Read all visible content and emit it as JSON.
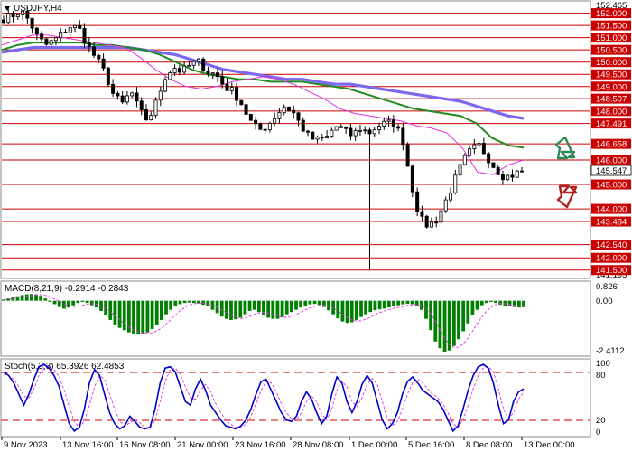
{
  "header": {
    "symbol": "USDJPY,H4"
  },
  "chart_data": [
    {
      "type": "candlestick",
      "panel": "price",
      "title": "USDJPY,H4",
      "ylim": [
        141.195,
        152.465
      ],
      "ytick_top": "152.465",
      "ytick_bottom": "141.195",
      "current_price": "145.547",
      "levels": [
        {
          "label": "152.000",
          "value": 152.0
        },
        {
          "label": "151.500",
          "value": 151.5
        },
        {
          "label": "151.000",
          "value": 151.0
        },
        {
          "label": "150.500",
          "value": 150.5
        },
        {
          "label": "150.000",
          "value": 150.0
        },
        {
          "label": "149.500",
          "value": 149.5
        },
        {
          "label": "149.000",
          "value": 149.0
        },
        {
          "label": "148.507",
          "value": 148.507
        },
        {
          "label": "148.000",
          "value": 148.0
        },
        {
          "label": "147.491",
          "value": 147.491
        },
        {
          "label": "146.658",
          "value": 146.658
        },
        {
          "label": "146.000",
          "value": 146.0
        },
        {
          "label": "145.000",
          "value": 145.0
        },
        {
          "label": "144.000",
          "value": 144.0
        },
        {
          "label": "143.484",
          "value": 143.484
        },
        {
          "label": "142.540",
          "value": 142.54
        },
        {
          "label": "142.000",
          "value": 142.0
        },
        {
          "label": "141.500",
          "value": 141.5
        }
      ],
      "close_path": [
        151.8,
        151.9,
        152.1,
        151.7,
        151.0,
        150.7,
        150.9,
        151.2,
        151.5,
        151.3,
        150.6,
        150.1,
        149.5,
        148.6,
        148.3,
        148.8,
        148.0,
        147.6,
        148.4,
        149.4,
        149.8,
        149.6,
        149.9,
        150.0,
        149.6,
        149.5,
        149.0,
        148.8,
        148.3,
        147.6,
        147.2,
        147.4,
        147.8,
        148.2,
        148.0,
        147.4,
        146.9,
        146.8,
        146.9,
        147.4,
        147.2,
        147.0,
        147.3,
        147.1,
        147.4,
        147.5,
        147.5,
        146.8,
        145.0,
        143.6,
        143.3,
        143.6,
        144.3,
        145.1,
        145.9,
        146.4,
        146.6,
        146.1,
        145.6,
        145.3,
        145.4,
        145.547
      ],
      "swing_low": 141.5,
      "colors": {
        "up": "#000000",
        "down": "#000000"
      },
      "moving_averages": [
        {
          "color": "#7b68ee",
          "values": [
            150.4,
            150.5,
            150.6,
            150.6,
            150.6,
            150.6,
            150.6,
            150.6,
            150.6,
            150.5,
            150.4,
            150.3,
            150.1,
            149.9,
            149.7,
            149.6,
            149.5,
            149.4,
            149.3,
            149.3,
            149.2,
            149.1,
            149.1,
            149.0,
            148.9,
            148.8,
            148.7,
            148.6,
            148.5,
            148.4,
            148.2,
            148.0,
            147.8,
            147.7
          ]
        },
        {
          "color": "#228b22",
          "values": [
            150.5,
            150.7,
            150.8,
            150.8,
            150.8,
            150.8,
            150.7,
            150.7,
            150.6,
            150.5,
            150.3,
            150.0,
            149.7,
            149.5,
            149.4,
            149.3,
            149.3,
            149.2,
            149.2,
            149.2,
            149.1,
            149.0,
            148.9,
            148.7,
            148.5,
            148.3,
            148.1,
            148.0,
            147.9,
            147.8,
            147.5,
            146.9,
            146.6,
            146.5
          ]
        },
        {
          "color": "#e032e0",
          "values": [
            150.7,
            150.9,
            151.1,
            151.1,
            151.0,
            150.9,
            150.8,
            150.7,
            150.6,
            150.2,
            149.7,
            149.3,
            149.0,
            148.9,
            149.0,
            149.2,
            149.3,
            149.4,
            149.3,
            149.1,
            148.8,
            148.5,
            148.1,
            147.9,
            147.8,
            147.7,
            147.6,
            147.4,
            147.3,
            147.1,
            146.5,
            145.5,
            145.4,
            145.8,
            146.0
          ]
        }
      ],
      "x_labels": [
        "9 Nov 2023",
        "13 Nov 16:00",
        "16 Nov 08:00",
        "21 Nov 00:00",
        "23 Nov 16:00",
        "28 Nov 08:00",
        "1 Dec 00:00",
        "5 Dec 16:00",
        "8 Dec 08:00",
        "13 Dec 00:00"
      ],
      "forecast_arrows": [
        {
          "direction": "up",
          "color": "#2e8b57"
        },
        {
          "direction": "down",
          "color": "#b22222"
        }
      ]
    },
    {
      "type": "histogram",
      "panel": "macd",
      "title": "MACD(8,21,9) -0.2914 -0.2843",
      "ylim": [
        -2.4112,
        0.826
      ],
      "ytick_labels": [
        "0.826",
        "0.00",
        "-2.4112"
      ],
      "bar_color": "#008000",
      "signal_color": "#e032e0",
      "histogram": [
        0.05,
        0.1,
        0.15,
        0.2,
        0.25,
        0.28,
        0.3,
        0.28,
        0.22,
        0.1,
        -0.05,
        -0.15,
        -0.28,
        -0.35,
        -0.3,
        -0.2,
        -0.1,
        -0.05,
        -0.1,
        -0.2,
        -0.3,
        -0.45,
        -0.65,
        -0.85,
        -1.05,
        -1.2,
        -1.3,
        -1.4,
        -1.45,
        -1.5,
        -1.48,
        -1.4,
        -1.25,
        -1.05,
        -0.85,
        -0.6,
        -0.4,
        -0.25,
        -0.15,
        -0.1,
        -0.08,
        -0.1,
        -0.12,
        -0.18,
        -0.25,
        -0.4,
        -0.55,
        -0.7,
        -0.8,
        -0.85,
        -0.82,
        -0.75,
        -0.6,
        -0.45,
        -0.4,
        -0.5,
        -0.62,
        -0.75,
        -0.8,
        -0.8,
        -0.72,
        -0.6,
        -0.5,
        -0.4,
        -0.3,
        -0.22,
        -0.16,
        -0.14,
        -0.18,
        -0.28,
        -0.42,
        -0.6,
        -0.78,
        -0.92,
        -0.98,
        -0.95,
        -0.85,
        -0.72,
        -0.6,
        -0.5,
        -0.42,
        -0.38,
        -0.35,
        -0.3,
        -0.25,
        -0.2,
        -0.16,
        -0.14,
        -0.15,
        -0.22,
        -0.4,
        -0.8,
        -1.3,
        -1.8,
        -2.1,
        -2.25,
        -2.2,
        -2.0,
        -1.7,
        -1.35,
        -1.0,
        -0.65,
        -0.4,
        -0.2,
        -0.1,
        -0.05,
        -0.1,
        -0.18,
        -0.22,
        -0.25,
        -0.28,
        -0.3,
        -0.29
      ]
    },
    {
      "type": "line",
      "panel": "stochastic",
      "title": "Stoch(5,3,3) 65.3926 62.4853",
      "ylim": [
        0,
        100
      ],
      "ytick_labels": [
        "100",
        "80",
        "20",
        "0"
      ],
      "levels": [
        80,
        20
      ],
      "series": [
        {
          "color": "#0000cd",
          "values": [
            85,
            80,
            70,
            55,
            40,
            55,
            75,
            92,
            95,
            90,
            80,
            65,
            40,
            15,
            5,
            10,
            35,
            70,
            88,
            80,
            55,
            30,
            15,
            8,
            12,
            25,
            18,
            10,
            8,
            10,
            35,
            70,
            90,
            92,
            85,
            65,
            45,
            40,
            62,
            75,
            60,
            40,
            30,
            20,
            12,
            10,
            8,
            12,
            20,
            35,
            55,
            72,
            75,
            60,
            45,
            30,
            20,
            18,
            25,
            45,
            58,
            48,
            30,
            15,
            25,
            55,
            78,
            70,
            45,
            30,
            45,
            68,
            80,
            70,
            45,
            20,
            8,
            15,
            30,
            55,
            72,
            78,
            70,
            60,
            55,
            50,
            45,
            35,
            20,
            5,
            12,
            35,
            60,
            80,
            92,
            95,
            90,
            70,
            40,
            15,
            20,
            45,
            58,
            62
          ]
        },
        {
          "color": "#e032e0",
          "values": [
            82,
            80,
            75,
            65,
            52,
            50,
            62,
            80,
            90,
            92,
            88,
            78,
            60,
            38,
            18,
            10,
            18,
            40,
            65,
            80,
            75,
            55,
            35,
            18,
            12,
            16,
            20,
            16,
            10,
            9,
            20,
            45,
            72,
            88,
            90,
            82,
            65,
            50,
            48,
            60,
            68,
            58,
            42,
            30,
            20,
            14,
            10,
            10,
            14,
            25,
            42,
            60,
            72,
            70,
            58,
            42,
            30,
            22,
            20,
            30,
            45,
            52,
            45,
            28,
            20,
            35,
            60,
            72,
            65,
            45,
            38,
            50,
            68,
            76,
            68,
            45,
            22,
            12,
            18,
            35,
            55,
            70,
            75,
            70,
            62,
            55,
            50,
            42,
            30,
            15,
            10,
            20,
            40,
            62,
            80,
            90,
            92,
            85,
            62,
            35,
            22,
            30,
            48,
            58
          ]
        }
      ]
    }
  ]
}
